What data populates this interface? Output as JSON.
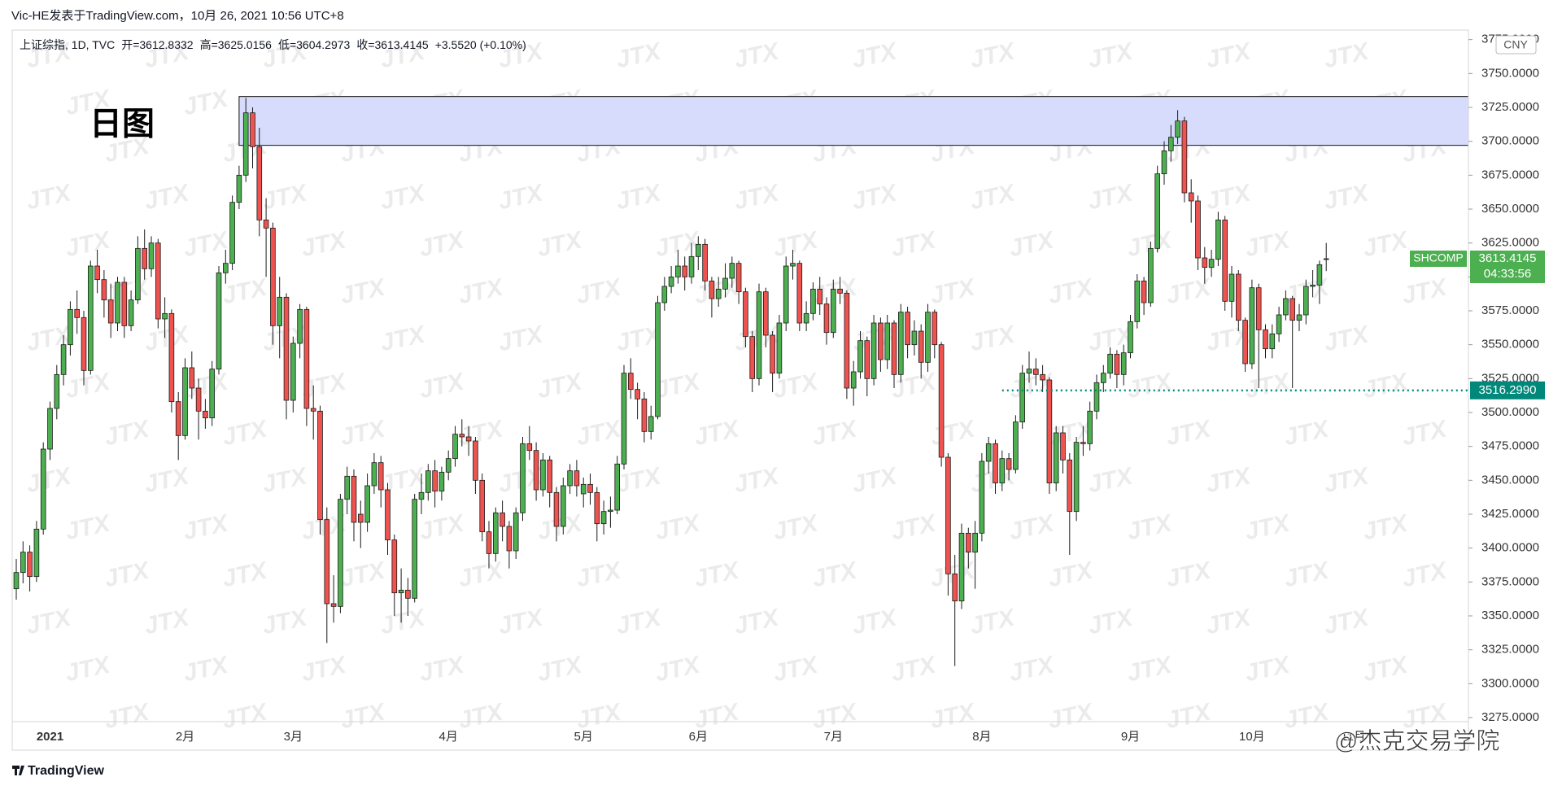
{
  "header": {
    "publisher": "Vic-HE发表于TradingView.com，10月 26, 2021 10:56 UTC+8"
  },
  "chart_data": {
    "type": "candlestick",
    "symbol_legend": "上证综指, 1D, TVC",
    "ohlc_labels": [
      "开=",
      "高=",
      "低=",
      "收="
    ],
    "change_label": "+3.5520 (+0.10%)",
    "ticker": "SHCOMP",
    "countdown": "04:33:56",
    "currency": "CNY",
    "annotation": "日图",
    "categories": [
      null,
      null,
      null,
      null,
      null,
      "2021",
      null,
      null,
      null,
      null,
      null,
      null,
      null,
      null,
      null,
      null,
      null,
      null,
      null,
      null,
      null,
      null,
      null,
      null,
      null,
      "2月",
      null,
      null,
      null,
      null,
      null,
      null,
      null,
      null,
      null,
      null,
      null,
      null,
      null,
      null,
      null,
      "3月",
      null,
      null,
      null,
      null,
      null,
      null,
      null,
      null,
      null,
      null,
      null,
      null,
      null,
      null,
      null,
      null,
      null,
      null,
      null,
      null,
      null,
      null,
      "4月",
      null,
      null,
      null,
      null,
      null,
      null,
      null,
      null,
      null,
      null,
      null,
      null,
      null,
      null,
      null,
      null,
      null,
      null,
      null,
      "5月",
      null,
      null,
      null,
      null,
      null,
      null,
      null,
      null,
      null,
      null,
      null,
      null,
      null,
      null,
      null,
      null,
      "6月",
      null,
      null,
      null,
      null,
      null,
      null,
      null,
      null,
      null,
      null,
      null,
      null,
      null,
      null,
      null,
      null,
      null,
      null,
      null,
      "7月",
      null,
      null,
      null,
      null,
      null,
      null,
      null,
      null,
      null,
      null,
      null,
      null,
      null,
      null,
      null,
      null,
      null,
      null,
      null,
      null,
      null,
      "8月",
      null,
      null,
      null,
      null,
      null,
      null,
      null,
      null,
      null,
      null,
      null,
      null,
      null,
      null,
      null,
      null,
      null,
      null,
      null,
      null,
      null,
      "9月",
      null,
      null,
      null,
      null,
      null,
      null,
      null,
      null,
      null,
      null,
      null,
      null,
      null,
      null,
      null,
      null,
      null,
      "10月",
      null,
      null,
      null,
      null,
      null,
      null,
      null,
      null,
      null,
      null,
      null
    ],
    "next_category": "11月",
    "ohlc": [
      [
        3370,
        3392,
        3362,
        3382
      ],
      [
        3382,
        3405,
        3374,
        3397
      ],
      [
        3397,
        3402,
        3368,
        3379
      ],
      [
        3379,
        3420,
        3375,
        3414
      ],
      [
        3414,
        3478,
        3410,
        3473
      ],
      [
        3473,
        3508,
        3465,
        3503
      ],
      [
        3503,
        3535,
        3495,
        3528
      ],
      [
        3528,
        3557,
        3520,
        3550
      ],
      [
        3550,
        3582,
        3542,
        3576
      ],
      [
        3576,
        3590,
        3558,
        3570
      ],
      [
        3570,
        3575,
        3520,
        3531
      ],
      [
        3531,
        3612,
        3528,
        3608
      ],
      [
        3608,
        3620,
        3588,
        3598
      ],
      [
        3598,
        3605,
        3570,
        3583
      ],
      [
        3583,
        3595,
        3555,
        3566
      ],
      [
        3566,
        3600,
        3560,
        3596
      ],
      [
        3596,
        3600,
        3555,
        3564
      ],
      [
        3564,
        3590,
        3560,
        3583
      ],
      [
        3583,
        3630,
        3580,
        3621
      ],
      [
        3621,
        3635,
        3598,
        3606
      ],
      [
        3606,
        3630,
        3600,
        3625
      ],
      [
        3625,
        3628,
        3562,
        3569
      ],
      [
        3569,
        3585,
        3555,
        3573
      ],
      [
        3573,
        3576,
        3500,
        3508
      ],
      [
        3508,
        3515,
        3465,
        3483
      ],
      [
        3483,
        3540,
        3480,
        3533
      ],
      [
        3533,
        3545,
        3510,
        3518
      ],
      [
        3518,
        3525,
        3480,
        3501
      ],
      [
        3501,
        3510,
        3488,
        3496
      ],
      [
        3496,
        3538,
        3490,
        3532
      ],
      [
        3532,
        3608,
        3528,
        3603
      ],
      [
        3603,
        3620,
        3595,
        3610
      ],
      [
        3610,
        3660,
        3605,
        3655
      ],
      [
        3655,
        3682,
        3650,
        3675
      ],
      [
        3675,
        3732,
        3670,
        3721
      ],
      [
        3721,
        3725,
        3680,
        3696
      ],
      [
        3696,
        3710,
        3630,
        3642
      ],
      [
        3642,
        3658,
        3600,
        3636
      ],
      [
        3636,
        3640,
        3550,
        3564
      ],
      [
        3564,
        3600,
        3540,
        3585
      ],
      [
        3585,
        3588,
        3495,
        3509
      ],
      [
        3509,
        3556,
        3500,
        3551
      ],
      [
        3551,
        3580,
        3540,
        3576
      ],
      [
        3576,
        3578,
        3490,
        3503
      ],
      [
        3503,
        3520,
        3480,
        3501
      ],
      [
        3501,
        3505,
        3410,
        3421
      ],
      [
        3421,
        3430,
        3330,
        3359
      ],
      [
        3359,
        3380,
        3345,
        3357
      ],
      [
        3357,
        3440,
        3352,
        3436
      ],
      [
        3436,
        3460,
        3425,
        3453
      ],
      [
        3453,
        3458,
        3405,
        3419
      ],
      [
        3425,
        3435,
        3400,
        3419
      ],
      [
        3419,
        3455,
        3412,
        3446
      ],
      [
        3446,
        3470,
        3440,
        3463
      ],
      [
        3463,
        3468,
        3430,
        3443
      ],
      [
        3443,
        3448,
        3395,
        3406
      ],
      [
        3406,
        3410,
        3350,
        3367
      ],
      [
        3367,
        3385,
        3345,
        3369
      ],
      [
        3369,
        3378,
        3350,
        3363
      ],
      [
        3363,
        3440,
        3360,
        3436
      ],
      [
        3436,
        3455,
        3425,
        3441
      ],
      [
        3441,
        3462,
        3435,
        3457
      ],
      [
        3457,
        3465,
        3430,
        3442
      ],
      [
        3442,
        3460,
        3435,
        3456
      ],
      [
        3456,
        3472,
        3450,
        3466
      ],
      [
        3466,
        3490,
        3460,
        3484
      ],
      [
        3484,
        3495,
        3475,
        3482
      ],
      [
        3482,
        3490,
        3468,
        3479
      ],
      [
        3479,
        3482,
        3440,
        3450
      ],
      [
        3450,
        3455,
        3405,
        3412
      ],
      [
        3412,
        3420,
        3385,
        3396
      ],
      [
        3396,
        3430,
        3390,
        3426
      ],
      [
        3426,
        3435,
        3405,
        3416
      ],
      [
        3416,
        3420,
        3385,
        3398
      ],
      [
        3398,
        3430,
        3392,
        3426
      ],
      [
        3426,
        3482,
        3420,
        3477
      ],
      [
        3477,
        3490,
        3465,
        3472
      ],
      [
        3472,
        3478,
        3435,
        3443
      ],
      [
        3443,
        3470,
        3438,
        3465
      ],
      [
        3465,
        3468,
        3430,
        3441
      ],
      [
        3441,
        3445,
        3405,
        3416
      ],
      [
        3416,
        3452,
        3410,
        3446
      ],
      [
        3446,
        3462,
        3440,
        3457
      ],
      [
        3457,
        3465,
        3438,
        3446
      ],
      [
        3440,
        3452,
        3430,
        3447
      ],
      [
        3447,
        3455,
        3432,
        3441
      ],
      [
        3441,
        3445,
        3405,
        3418
      ],
      [
        3418,
        3435,
        3410,
        3427
      ],
      [
        3427,
        3438,
        3415,
        3428
      ],
      [
        3428,
        3468,
        3425,
        3462
      ],
      [
        3462,
        3535,
        3458,
        3529
      ],
      [
        3529,
        3540,
        3510,
        3517
      ],
      [
        3517,
        3522,
        3495,
        3510
      ],
      [
        3510,
        3515,
        3478,
        3486
      ],
      [
        3486,
        3505,
        3480,
        3497
      ],
      [
        3497,
        3586,
        3495,
        3581
      ],
      [
        3581,
        3600,
        3575,
        3593
      ],
      [
        3593,
        3608,
        3588,
        3600
      ],
      [
        3600,
        3620,
        3595,
        3608
      ],
      [
        3608,
        3615,
        3590,
        3600
      ],
      [
        3600,
        3625,
        3595,
        3615
      ],
      [
        3615,
        3630,
        3605,
        3624
      ],
      [
        3624,
        3628,
        3590,
        3597
      ],
      [
        3597,
        3600,
        3570,
        3584
      ],
      [
        3584,
        3600,
        3578,
        3591
      ],
      [
        3591,
        3610,
        3585,
        3599
      ],
      [
        3599,
        3615,
        3592,
        3610
      ],
      [
        3610,
        3612,
        3580,
        3589
      ],
      [
        3589,
        3592,
        3548,
        3556
      ],
      [
        3556,
        3560,
        3515,
        3525
      ],
      [
        3525,
        3595,
        3520,
        3589
      ],
      [
        3589,
        3592,
        3548,
        3557
      ],
      [
        3557,
        3560,
        3515,
        3529
      ],
      [
        3529,
        3572,
        3525,
        3566
      ],
      [
        3566,
        3615,
        3560,
        3608
      ],
      [
        3608,
        3620,
        3598,
        3610
      ],
      [
        3610,
        3612,
        3560,
        3566
      ],
      [
        3566,
        3582,
        3560,
        3573
      ],
      [
        3573,
        3596,
        3568,
        3591
      ],
      [
        3591,
        3600,
        3572,
        3580
      ],
      [
        3580,
        3585,
        3550,
        3559
      ],
      [
        3559,
        3598,
        3555,
        3591
      ],
      [
        3591,
        3600,
        3580,
        3588
      ],
      [
        3588,
        3590,
        3510,
        3518
      ],
      [
        3518,
        3538,
        3505,
        3530
      ],
      [
        3530,
        3560,
        3525,
        3553
      ],
      [
        3553,
        3556,
        3512,
        3525
      ],
      [
        3525,
        3572,
        3520,
        3566
      ],
      [
        3566,
        3570,
        3530,
        3539
      ],
      [
        3539,
        3572,
        3532,
        3566
      ],
      [
        3566,
        3568,
        3518,
        3528
      ],
      [
        3528,
        3580,
        3522,
        3574
      ],
      [
        3574,
        3578,
        3540,
        3550
      ],
      [
        3550,
        3568,
        3542,
        3560
      ],
      [
        3560,
        3565,
        3525,
        3537
      ],
      [
        3537,
        3580,
        3530,
        3574
      ],
      [
        3574,
        3576,
        3540,
        3550
      ],
      [
        3550,
        3552,
        3460,
        3467
      ],
      [
        3467,
        3470,
        3365,
        3381
      ],
      [
        3381,
        3395,
        3313,
        3361
      ],
      [
        3361,
        3418,
        3355,
        3411
      ],
      [
        3411,
        3415,
        3385,
        3397
      ],
      [
        3397,
        3420,
        3370,
        3411
      ],
      [
        3411,
        3470,
        3405,
        3464
      ],
      [
        3464,
        3482,
        3455,
        3477
      ],
      [
        3477,
        3480,
        3440,
        3448
      ],
      [
        3448,
        3472,
        3442,
        3466
      ],
      [
        3466,
        3470,
        3450,
        3458
      ],
      [
        3458,
        3498,
        3455,
        3493
      ],
      [
        3493,
        3535,
        3488,
        3529
      ],
      [
        3529,
        3545,
        3522,
        3532
      ],
      [
        3532,
        3540,
        3520,
        3528
      ],
      [
        3528,
        3535,
        3515,
        3524
      ],
      [
        3524,
        3526,
        3440,
        3448
      ],
      [
        3448,
        3490,
        3442,
        3485
      ],
      [
        3485,
        3490,
        3455,
        3465
      ],
      [
        3465,
        3470,
        3395,
        3427
      ],
      [
        3427,
        3482,
        3420,
        3478
      ],
      [
        3478,
        3490,
        3468,
        3477
      ],
      [
        3477,
        3508,
        3472,
        3501
      ],
      [
        3501,
        3528,
        3495,
        3522
      ],
      [
        3522,
        3535,
        3515,
        3529
      ],
      [
        3529,
        3548,
        3525,
        3543
      ],
      [
        3543,
        3546,
        3518,
        3528
      ],
      [
        3528,
        3550,
        3520,
        3544
      ],
      [
        3544,
        3572,
        3540,
        3567
      ],
      [
        3567,
        3602,
        3562,
        3597
      ],
      [
        3597,
        3600,
        3572,
        3581
      ],
      [
        3581,
        3626,
        3578,
        3621
      ],
      [
        3621,
        3682,
        3618,
        3676
      ],
      [
        3676,
        3700,
        3668,
        3693
      ],
      [
        3693,
        3712,
        3685,
        3703
      ],
      [
        3703,
        3723,
        3698,
        3715
      ],
      [
        3715,
        3718,
        3655,
        3662
      ],
      [
        3662,
        3672,
        3640,
        3656
      ],
      [
        3656,
        3660,
        3605,
        3614
      ],
      [
        3614,
        3622,
        3595,
        3607
      ],
      [
        3607,
        3620,
        3600,
        3613
      ],
      [
        3613,
        3648,
        3608,
        3642
      ],
      [
        3642,
        3645,
        3575,
        3582
      ],
      [
        3582,
        3608,
        3570,
        3602
      ],
      [
        3602,
        3605,
        3560,
        3568
      ],
      [
        3568,
        3570,
        3530,
        3536
      ],
      [
        3536,
        3598,
        3532,
        3592
      ],
      [
        3592,
        3595,
        3518,
        3561
      ],
      [
        3561,
        3565,
        3540,
        3547
      ],
      [
        3547,
        3565,
        3540,
        3558
      ],
      [
        3558,
        3578,
        3552,
        3572
      ],
      [
        3572,
        3590,
        3568,
        3584
      ],
      [
        3584,
        3586,
        3518,
        3568
      ],
      [
        3568,
        3580,
        3560,
        3572
      ],
      [
        3572,
        3598,
        3565,
        3593
      ],
      [
        3593,
        3605,
        3585,
        3594
      ],
      [
        3594,
        3612,
        3580,
        3609
      ],
      [
        3612.8332,
        3625.0156,
        3604.2973,
        3613.4145
      ]
    ],
    "up_color": "#4caf50",
    "down_color": "#ef5350",
    "border_color": "#1b1b1b",
    "ylim": [
      3272,
      3782
    ],
    "yticks": [
      {
        "value": 3275,
        "label": "3275.0000"
      },
      {
        "value": 3300,
        "label": "3300.0000"
      },
      {
        "value": 3325,
        "label": "3325.0000"
      },
      {
        "value": 3350,
        "label": "3350.0000"
      },
      {
        "value": 3375,
        "label": "3375.0000"
      },
      {
        "value": 3400,
        "label": "3400.0000"
      },
      {
        "value": 3425,
        "label": "3425.0000"
      },
      {
        "value": 3450,
        "label": "3450.0000"
      },
      {
        "value": 3475,
        "label": "3475.0000"
      },
      {
        "value": 3500,
        "label": "3500.0000"
      },
      {
        "value": 3525,
        "label": "3525.0000"
      },
      {
        "value": 3550,
        "label": "3550.0000"
      },
      {
        "value": 3575,
        "label": "3575.0000"
      },
      {
        "value": 3600,
        "label": "3600.0000"
      },
      {
        "value": 3625,
        "label": "3625.0000"
      },
      {
        "value": 3650,
        "label": "3650.0000"
      },
      {
        "value": 3675,
        "label": "3675.0000"
      },
      {
        "value": 3700,
        "label": "3700.0000"
      },
      {
        "value": 3725,
        "label": "3725.0000"
      },
      {
        "value": 3750,
        "label": "3750.0000"
      },
      {
        "value": 3775,
        "label": "3775.0000"
      }
    ],
    "zone": {
      "x_start": 33,
      "values": [
        3697,
        3733
      ],
      "color": "#d7dcfc"
    },
    "hline": {
      "x_start": 146,
      "value": {
        "value": 3516.299,
        "label": "3516.2990"
      },
      "color": "#00897b"
    }
  },
  "watermark": "JTX",
  "footer": {
    "logo": "TradingView",
    "signature": "@杰克交易学院"
  }
}
